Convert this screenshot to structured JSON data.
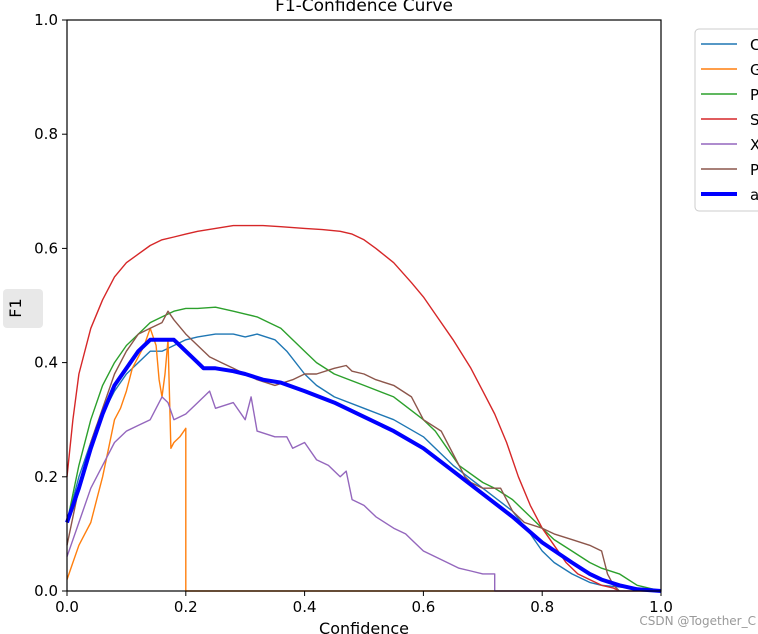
{
  "watermark": "CSDN @Together_C",
  "chart_data": {
    "type": "line",
    "title": "F1-Confidence Curve",
    "xlabel": "Confidence",
    "ylabel": "F1",
    "xlim": [
      0,
      1
    ],
    "ylim": [
      0,
      1
    ],
    "xticks": [
      "0.0",
      "0.2",
      "0.4",
      "0.6",
      "0.8",
      "1.0"
    ],
    "yticks": [
      "0.0",
      "0.2",
      "0.4",
      "0.6",
      "0.8",
      "1.0"
    ],
    "grid": false,
    "legend_position": "outside-top-right",
    "series": [
      {
        "name": "C",
        "color": "#1f77b4",
        "width": 1.4,
        "points": [
          [
            0,
            0.12
          ],
          [
            0.02,
            0.2
          ],
          [
            0.05,
            0.29
          ],
          [
            0.08,
            0.35
          ],
          [
            0.1,
            0.38
          ],
          [
            0.12,
            0.4
          ],
          [
            0.14,
            0.42
          ],
          [
            0.16,
            0.42
          ],
          [
            0.18,
            0.43
          ],
          [
            0.2,
            0.44
          ],
          [
            0.22,
            0.445
          ],
          [
            0.25,
            0.45
          ],
          [
            0.28,
            0.45
          ],
          [
            0.3,
            0.445
          ],
          [
            0.32,
            0.45
          ],
          [
            0.35,
            0.44
          ],
          [
            0.37,
            0.42
          ],
          [
            0.4,
            0.38
          ],
          [
            0.42,
            0.36
          ],
          [
            0.45,
            0.34
          ],
          [
            0.5,
            0.32
          ],
          [
            0.55,
            0.3
          ],
          [
            0.6,
            0.27
          ],
          [
            0.62,
            0.25
          ],
          [
            0.65,
            0.22
          ],
          [
            0.7,
            0.18
          ],
          [
            0.75,
            0.14
          ],
          [
            0.78,
            0.1
          ],
          [
            0.8,
            0.07
          ],
          [
            0.82,
            0.05
          ],
          [
            0.85,
            0.03
          ],
          [
            0.88,
            0.015
          ],
          [
            0.9,
            0.01
          ],
          [
            0.95,
            0.005
          ],
          [
            1.0,
            0
          ]
        ]
      },
      {
        "name": "G",
        "color": "#ff7f0e",
        "width": 1.4,
        "points": [
          [
            0,
            0.02
          ],
          [
            0.01,
            0.05
          ],
          [
            0.02,
            0.08
          ],
          [
            0.03,
            0.1
          ],
          [
            0.04,
            0.12
          ],
          [
            0.05,
            0.16
          ],
          [
            0.06,
            0.2
          ],
          [
            0.07,
            0.25
          ],
          [
            0.08,
            0.3
          ],
          [
            0.09,
            0.32
          ],
          [
            0.1,
            0.35
          ],
          [
            0.11,
            0.39
          ],
          [
            0.12,
            0.41
          ],
          [
            0.13,
            0.43
          ],
          [
            0.14,
            0.46
          ],
          [
            0.15,
            0.43
          ],
          [
            0.155,
            0.37
          ],
          [
            0.16,
            0.34
          ],
          [
            0.165,
            0.38
          ],
          [
            0.17,
            0.44
          ],
          [
            0.175,
            0.25
          ],
          [
            0.18,
            0.26
          ],
          [
            0.19,
            0.27
          ],
          [
            0.2,
            0.285
          ],
          [
            0.2,
            0
          ],
          [
            1.0,
            0
          ]
        ]
      },
      {
        "name": "P",
        "color": "#2ca02c",
        "width": 1.4,
        "points": [
          [
            0,
            0.12
          ],
          [
            0.02,
            0.22
          ],
          [
            0.04,
            0.3
          ],
          [
            0.06,
            0.36
          ],
          [
            0.08,
            0.4
          ],
          [
            0.1,
            0.43
          ],
          [
            0.12,
            0.45
          ],
          [
            0.14,
            0.47
          ],
          [
            0.16,
            0.48
          ],
          [
            0.18,
            0.49
          ],
          [
            0.2,
            0.495
          ],
          [
            0.22,
            0.495
          ],
          [
            0.25,
            0.497
          ],
          [
            0.28,
            0.49
          ],
          [
            0.3,
            0.485
          ],
          [
            0.32,
            0.48
          ],
          [
            0.34,
            0.47
          ],
          [
            0.36,
            0.46
          ],
          [
            0.38,
            0.44
          ],
          [
            0.4,
            0.42
          ],
          [
            0.42,
            0.4
          ],
          [
            0.45,
            0.38
          ],
          [
            0.5,
            0.36
          ],
          [
            0.55,
            0.34
          ],
          [
            0.6,
            0.3
          ],
          [
            0.62,
            0.28
          ],
          [
            0.64,
            0.25
          ],
          [
            0.66,
            0.22
          ],
          [
            0.7,
            0.19
          ],
          [
            0.72,
            0.18
          ],
          [
            0.75,
            0.16
          ],
          [
            0.78,
            0.13
          ],
          [
            0.8,
            0.11
          ],
          [
            0.82,
            0.09
          ],
          [
            0.85,
            0.07
          ],
          [
            0.88,
            0.05
          ],
          [
            0.9,
            0.04
          ],
          [
            0.93,
            0.03
          ],
          [
            0.96,
            0.01
          ],
          [
            1.0,
            0
          ]
        ]
      },
      {
        "name": "S",
        "color": "#d62728",
        "width": 1.4,
        "points": [
          [
            0,
            0.2
          ],
          [
            0.01,
            0.3
          ],
          [
            0.02,
            0.38
          ],
          [
            0.04,
            0.46
          ],
          [
            0.06,
            0.51
          ],
          [
            0.08,
            0.55
          ],
          [
            0.1,
            0.575
          ],
          [
            0.12,
            0.59
          ],
          [
            0.14,
            0.605
          ],
          [
            0.16,
            0.615
          ],
          [
            0.18,
            0.62
          ],
          [
            0.2,
            0.625
          ],
          [
            0.22,
            0.63
          ],
          [
            0.25,
            0.635
          ],
          [
            0.28,
            0.64
          ],
          [
            0.3,
            0.64
          ],
          [
            0.33,
            0.64
          ],
          [
            0.36,
            0.638
          ],
          [
            0.4,
            0.635
          ],
          [
            0.43,
            0.633
          ],
          [
            0.46,
            0.63
          ],
          [
            0.48,
            0.625
          ],
          [
            0.5,
            0.615
          ],
          [
            0.52,
            0.6
          ],
          [
            0.55,
            0.575
          ],
          [
            0.58,
            0.54
          ],
          [
            0.6,
            0.515
          ],
          [
            0.62,
            0.485
          ],
          [
            0.65,
            0.44
          ],
          [
            0.68,
            0.39
          ],
          [
            0.7,
            0.35
          ],
          [
            0.72,
            0.31
          ],
          [
            0.74,
            0.26
          ],
          [
            0.76,
            0.2
          ],
          [
            0.78,
            0.15
          ],
          [
            0.8,
            0.11
          ],
          [
            0.82,
            0.08
          ],
          [
            0.84,
            0.05
          ],
          [
            0.86,
            0.03
          ],
          [
            0.88,
            0.02
          ],
          [
            0.9,
            0.01
          ],
          [
            0.92,
            0.005
          ],
          [
            0.93,
            0
          ]
        ]
      },
      {
        "name": "X",
        "color": "#9467bd",
        "width": 1.4,
        "points": [
          [
            0,
            0.06
          ],
          [
            0.02,
            0.12
          ],
          [
            0.04,
            0.18
          ],
          [
            0.06,
            0.22
          ],
          [
            0.08,
            0.26
          ],
          [
            0.1,
            0.28
          ],
          [
            0.12,
            0.29
          ],
          [
            0.14,
            0.3
          ],
          [
            0.15,
            0.32
          ],
          [
            0.16,
            0.34
          ],
          [
            0.17,
            0.33
          ],
          [
            0.18,
            0.3
          ],
          [
            0.2,
            0.31
          ],
          [
            0.22,
            0.33
          ],
          [
            0.24,
            0.35
          ],
          [
            0.25,
            0.32
          ],
          [
            0.28,
            0.33
          ],
          [
            0.3,
            0.3
          ],
          [
            0.31,
            0.34
          ],
          [
            0.32,
            0.28
          ],
          [
            0.35,
            0.27
          ],
          [
            0.37,
            0.27
          ],
          [
            0.38,
            0.25
          ],
          [
            0.4,
            0.26
          ],
          [
            0.42,
            0.23
          ],
          [
            0.44,
            0.22
          ],
          [
            0.46,
            0.2
          ],
          [
            0.47,
            0.21
          ],
          [
            0.48,
            0.16
          ],
          [
            0.5,
            0.15
          ],
          [
            0.52,
            0.13
          ],
          [
            0.55,
            0.11
          ],
          [
            0.57,
            0.1
          ],
          [
            0.58,
            0.09
          ],
          [
            0.6,
            0.07
          ],
          [
            0.62,
            0.06
          ],
          [
            0.64,
            0.05
          ],
          [
            0.66,
            0.04
          ],
          [
            0.68,
            0.035
          ],
          [
            0.7,
            0.03
          ],
          [
            0.72,
            0.03
          ],
          [
            0.72,
            0
          ],
          [
            1.0,
            0
          ]
        ]
      },
      {
        "name": "P",
        "color": "#8c564b",
        "width": 1.4,
        "points": [
          [
            0,
            0.08
          ],
          [
            0.02,
            0.18
          ],
          [
            0.04,
            0.26
          ],
          [
            0.06,
            0.32
          ],
          [
            0.08,
            0.38
          ],
          [
            0.1,
            0.42
          ],
          [
            0.12,
            0.45
          ],
          [
            0.14,
            0.46
          ],
          [
            0.16,
            0.47
          ],
          [
            0.17,
            0.49
          ],
          [
            0.18,
            0.475
          ],
          [
            0.2,
            0.45
          ],
          [
            0.22,
            0.43
          ],
          [
            0.24,
            0.41
          ],
          [
            0.26,
            0.4
          ],
          [
            0.28,
            0.39
          ],
          [
            0.3,
            0.38
          ],
          [
            0.32,
            0.37
          ],
          [
            0.35,
            0.36
          ],
          [
            0.38,
            0.37
          ],
          [
            0.4,
            0.38
          ],
          [
            0.42,
            0.38
          ],
          [
            0.45,
            0.39
          ],
          [
            0.47,
            0.395
          ],
          [
            0.48,
            0.385
          ],
          [
            0.5,
            0.38
          ],
          [
            0.52,
            0.37
          ],
          [
            0.55,
            0.36
          ],
          [
            0.58,
            0.34
          ],
          [
            0.6,
            0.3
          ],
          [
            0.63,
            0.28
          ],
          [
            0.65,
            0.24
          ],
          [
            0.67,
            0.2
          ],
          [
            0.68,
            0.19
          ],
          [
            0.7,
            0.18
          ],
          [
            0.73,
            0.18
          ],
          [
            0.75,
            0.14
          ],
          [
            0.77,
            0.12
          ],
          [
            0.8,
            0.11
          ],
          [
            0.82,
            0.1
          ],
          [
            0.85,
            0.09
          ],
          [
            0.88,
            0.08
          ],
          [
            0.9,
            0.07
          ],
          [
            0.91,
            0.03
          ],
          [
            0.92,
            0.01
          ],
          [
            0.93,
            0
          ]
        ]
      },
      {
        "name": "a",
        "color": "#0000ff",
        "width": 4,
        "points": [
          [
            0,
            0.12
          ],
          [
            0.02,
            0.18
          ],
          [
            0.04,
            0.25
          ],
          [
            0.06,
            0.31
          ],
          [
            0.08,
            0.36
          ],
          [
            0.1,
            0.39
          ],
          [
            0.12,
            0.42
          ],
          [
            0.14,
            0.44
          ],
          [
            0.16,
            0.44
          ],
          [
            0.18,
            0.44
          ],
          [
            0.19,
            0.43
          ],
          [
            0.2,
            0.42
          ],
          [
            0.22,
            0.4
          ],
          [
            0.23,
            0.39
          ],
          [
            0.25,
            0.39
          ],
          [
            0.28,
            0.385
          ],
          [
            0.3,
            0.38
          ],
          [
            0.33,
            0.37
          ],
          [
            0.36,
            0.365
          ],
          [
            0.4,
            0.35
          ],
          [
            0.45,
            0.33
          ],
          [
            0.5,
            0.305
          ],
          [
            0.55,
            0.28
          ],
          [
            0.6,
            0.25
          ],
          [
            0.65,
            0.21
          ],
          [
            0.7,
            0.17
          ],
          [
            0.75,
            0.13
          ],
          [
            0.8,
            0.085
          ],
          [
            0.85,
            0.05
          ],
          [
            0.88,
            0.03
          ],
          [
            0.9,
            0.02
          ],
          [
            0.93,
            0.01
          ],
          [
            0.96,
            0.003
          ],
          [
            1.0,
            0
          ]
        ]
      }
    ]
  }
}
